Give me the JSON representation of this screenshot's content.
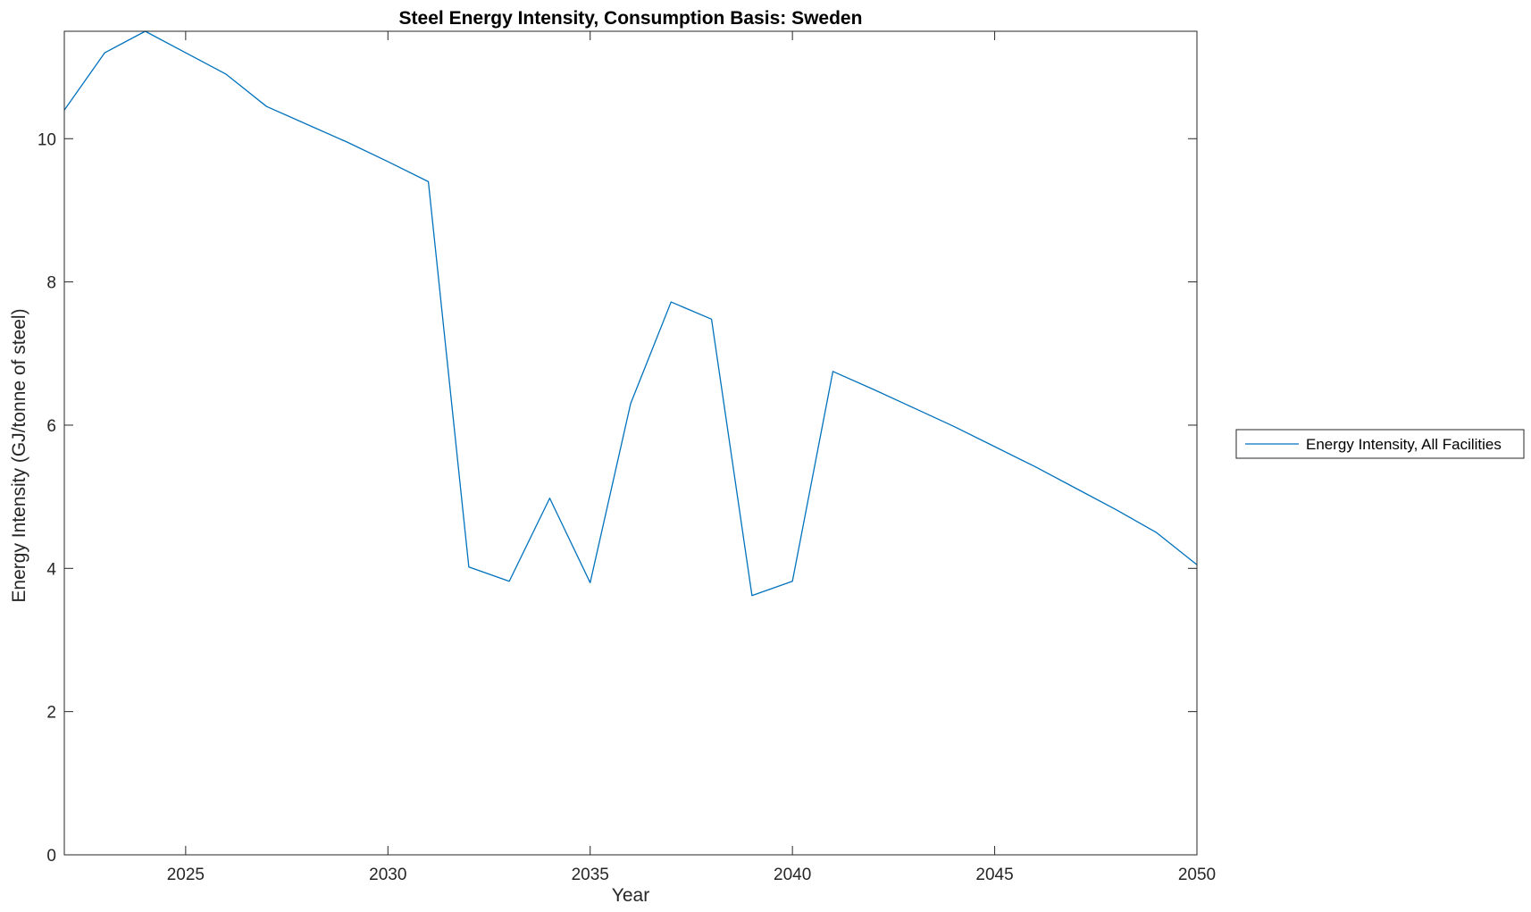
{
  "chart_data": {
    "type": "line",
    "title": "Steel Energy Intensity, Consumption Basis: Sweden",
    "xlabel": "Year",
    "ylabel": "Energy Intensity (GJ/tonne of steel)",
    "xlim": [
      2022,
      2050
    ],
    "ylim": [
      0,
      11.5
    ],
    "xticks": [
      2025,
      2030,
      2035,
      2040,
      2045,
      2050
    ],
    "yticks": [
      0,
      2,
      4,
      6,
      8,
      10
    ],
    "grid": false,
    "legend_position": "outside-right",
    "series": [
      {
        "name": "Energy Intensity, All Facilities",
        "color": "#0072BD",
        "x": [
          2022,
          2023,
          2024,
          2025,
          2026,
          2027,
          2028,
          2029,
          2030,
          2031,
          2032,
          2033,
          2034,
          2035,
          2036,
          2037,
          2038,
          2039,
          2040,
          2041,
          2042,
          2043,
          2044,
          2045,
          2046,
          2047,
          2048,
          2049,
          2050
        ],
        "y": [
          10.4,
          11.2,
          11.5,
          11.2,
          10.9,
          10.45,
          10.2,
          9.95,
          9.68,
          9.4,
          4.02,
          3.82,
          4.98,
          3.8,
          6.3,
          7.72,
          7.48,
          3.62,
          3.82,
          6.75,
          6.5,
          6.24,
          5.98,
          5.7,
          5.42,
          5.12,
          4.82,
          4.5,
          4.05
        ]
      }
    ]
  }
}
